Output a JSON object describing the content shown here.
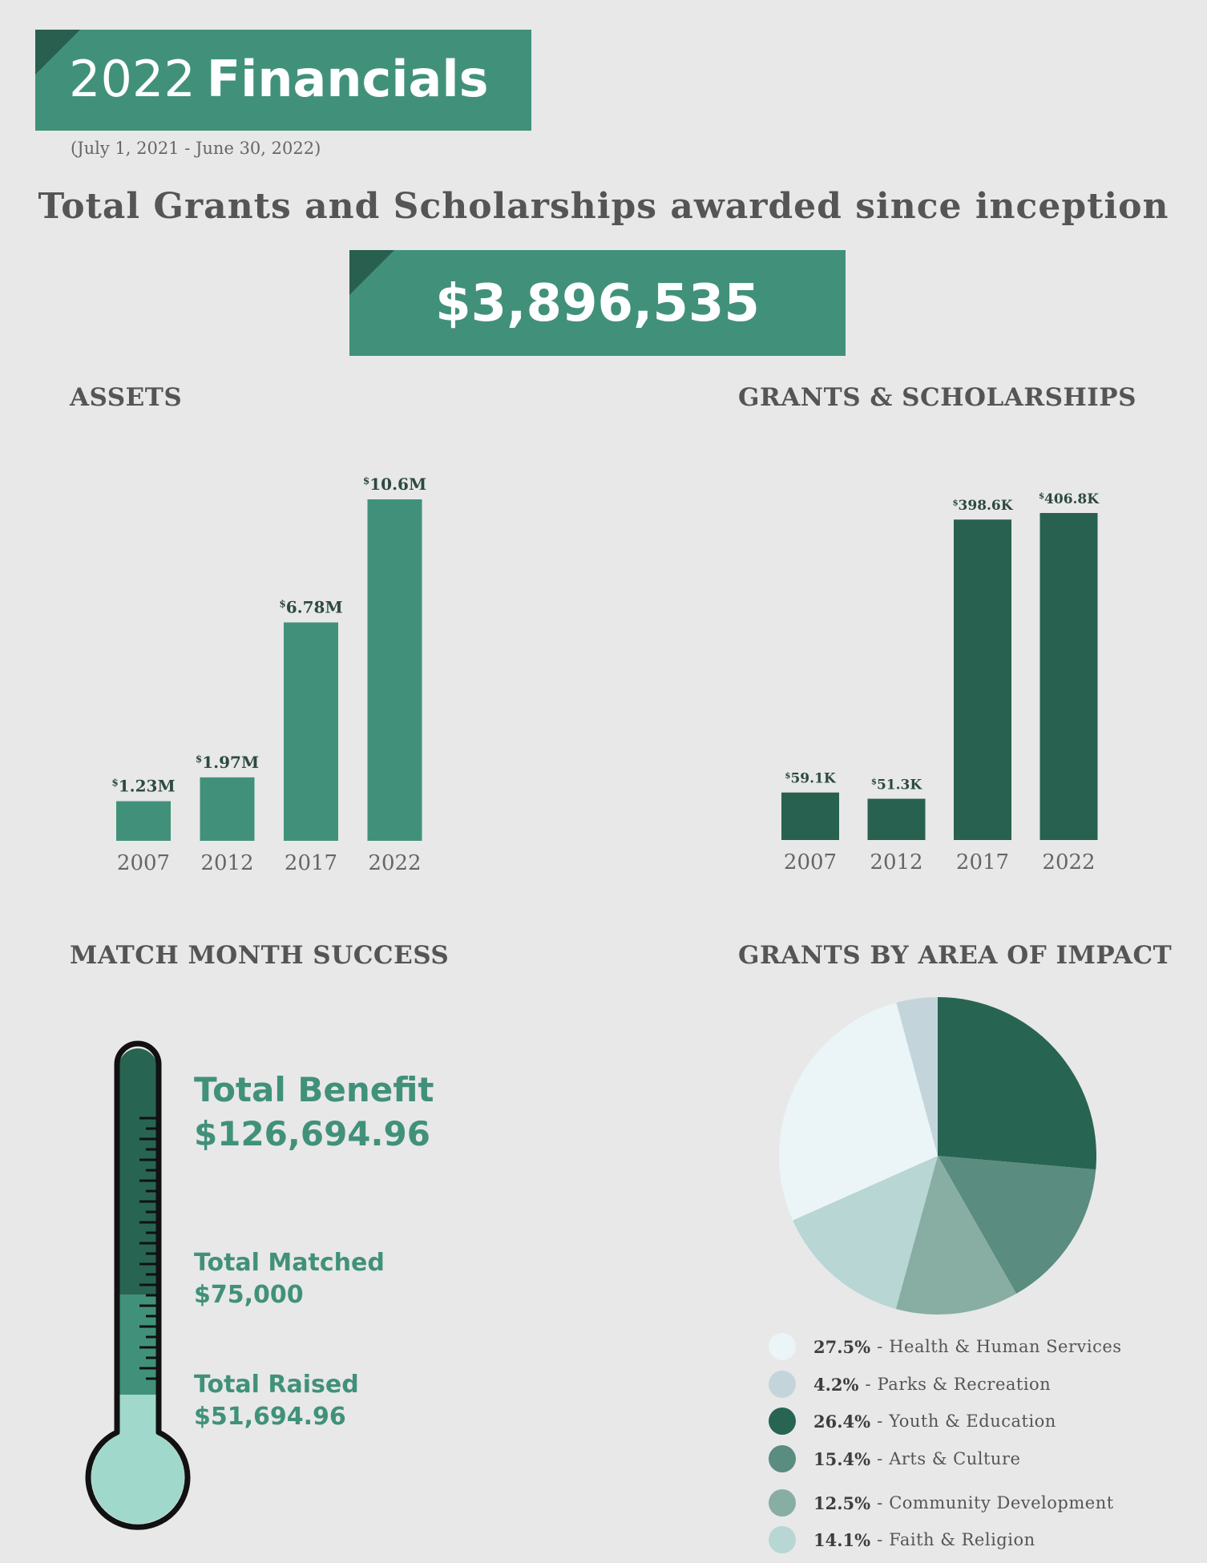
{
  "header": {
    "title_year": "2022",
    "title_word": "Financials",
    "period": "(July 1, 2021 - June 30, 2022)",
    "headline": "Total Grants and Scholarships awarded since inception",
    "total_awarded": "$3,896,535"
  },
  "colors": {
    "brand_green": "#41917a",
    "dark_green": "#285f4f",
    "background": "#e8e8e8"
  },
  "sections": {
    "assets": "ASSETS",
    "grants": "GRANTS & SCHOLARSHIPS",
    "match": "MATCH MONTH SUCCESS",
    "impact": "GRANTS BY AREA OF IMPACT"
  },
  "match_month": {
    "benefit_label": "Total Benefit",
    "benefit_value": "$126,694.96",
    "matched_label": "Total Matched",
    "matched_value": "$75,000",
    "raised_label": "Total Raised",
    "raised_value": "$51,694.96",
    "benefit_amount": 126694.96,
    "matched_amount": 75000,
    "raised_amount": 51694.96
  },
  "chart_data": [
    {
      "type": "bar",
      "title": "ASSETS",
      "categories": [
        "2007",
        "2012",
        "2017",
        "2022"
      ],
      "values": [
        1.23,
        1.97,
        6.78,
        10.6
      ],
      "value_labels": [
        "1.23M",
        "1.97M",
        "6.78M",
        "10.6M"
      ],
      "unit_prefix": "$",
      "ylim": [
        0,
        10.6
      ],
      "color": "#41917a",
      "grid": false
    },
    {
      "type": "bar",
      "title": "GRANTS & SCHOLARSHIPS",
      "categories": [
        "2007",
        "2012",
        "2017",
        "2022"
      ],
      "values": [
        59.1,
        51.3,
        398.6,
        406.8
      ],
      "value_labels": [
        "59.1K",
        "51.3K",
        "398.6K",
        "406.8K"
      ],
      "unit_prefix": "$",
      "ylim": [
        0,
        406.8
      ],
      "color": "#286150",
      "grid": false
    },
    {
      "type": "pie",
      "title": "GRANTS BY AREA OF IMPACT",
      "slices": [
        {
          "label": "Youth & Education",
          "pct_label": "26.4%",
          "value": 26.4,
          "color": "#286452"
        },
        {
          "label": "Arts & Culture",
          "pct_label": "15.4%",
          "value": 15.4,
          "color": "#5a8c7f"
        },
        {
          "label": "Community Development",
          "pct_label": "12.5%",
          "value": 12.5,
          "color": "#88aea4"
        },
        {
          "label": "Faith & Religion",
          "pct_label": "14.1%",
          "value": 14.1,
          "color": "#b7d6d4"
        },
        {
          "label": "Health & Human Services",
          "pct_label": "27.5%",
          "value": 27.5,
          "color": "#ebf4f6"
        },
        {
          "label": "Parks & Recreation",
          "pct_label": "4.2%",
          "value": 4.2,
          "color": "#c3d5da"
        }
      ],
      "legend_order": [
        4,
        5,
        0,
        1,
        2,
        3
      ],
      "legend_placement": "bottom"
    }
  ]
}
